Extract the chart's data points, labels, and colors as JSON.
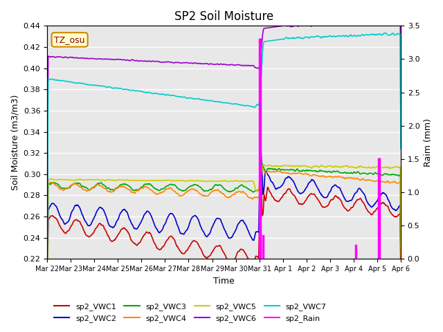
{
  "title": "SP2 Soil Moisture",
  "ylabel_left": "Soil Moisture (m3/m3)",
  "ylabel_right": "Raim (mm)",
  "xlabel": "Time",
  "annotation": "TZ_osu",
  "background_color": "#e8e8e8",
  "ylim_left": [
    0.22,
    0.44
  ],
  "ylim_right": [
    0.0,
    3.5
  ],
  "series": {
    "sp2_VWC1": {
      "color": "#cc0000",
      "lw": 1.2
    },
    "sp2_VWC2": {
      "color": "#0000cc",
      "lw": 1.2
    },
    "sp2_VWC3": {
      "color": "#00aa00",
      "lw": 1.2
    },
    "sp2_VWC4": {
      "color": "#ff8800",
      "lw": 1.2
    },
    "sp2_VWC5": {
      "color": "#cccc00",
      "lw": 1.2
    },
    "sp2_VWC6": {
      "color": "#9900cc",
      "lw": 1.2
    },
    "sp2_VWC7": {
      "color": "#00cccc",
      "lw": 1.2
    },
    "sp2_Rain": {
      "color": "#ff00ff",
      "lw": 1.5
    }
  },
  "xtick_labels": [
    "Mar 22",
    "Mar 23",
    "Mar 24",
    "Mar 25",
    "Mar 26",
    "Mar 27",
    "Mar 28",
    "Mar 29",
    "Mar 30",
    "Mar 31",
    "Apr 1",
    "Apr 2",
    "Apr 3",
    "Apr 4",
    "Apr 5",
    "Apr 6"
  ],
  "ytick_left": [
    0.22,
    0.24,
    0.26,
    0.28,
    0.3,
    0.32,
    0.34,
    0.36,
    0.38,
    0.4,
    0.42,
    0.44
  ],
  "ytick_right": [
    0.0,
    0.5,
    1.0,
    1.5,
    2.0,
    2.5,
    3.0,
    3.5
  ]
}
